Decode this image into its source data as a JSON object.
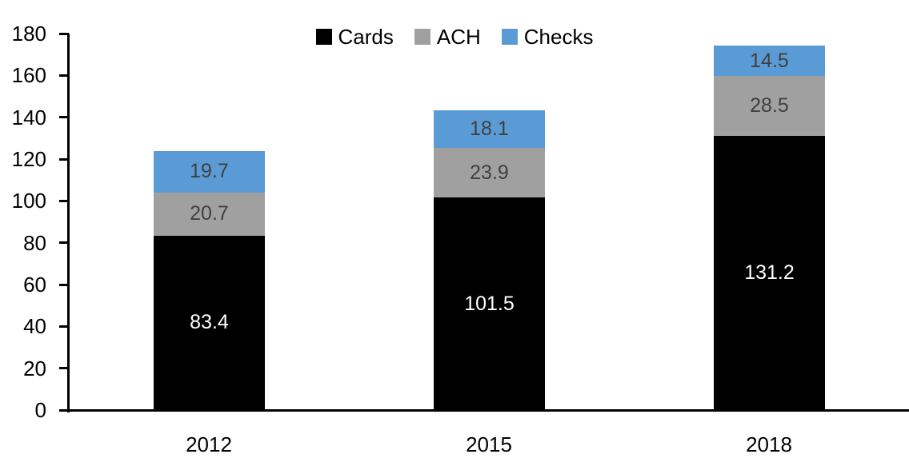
{
  "chart_data": {
    "type": "bar",
    "variant": "stacked",
    "title": "",
    "xlabel": "",
    "ylabel": "",
    "categories": [
      "2012",
      "2015",
      "2018"
    ],
    "series": [
      {
        "name": "Cards",
        "color": "#000000",
        "label_color": "#ffffff",
        "values": [
          83.4,
          101.5,
          131.2
        ]
      },
      {
        "name": "ACH",
        "color": "#A0A0A0",
        "label_color": "#404040",
        "values": [
          20.7,
          23.9,
          28.5
        ]
      },
      {
        "name": "Checks",
        "color": "#5B9BD5",
        "label_color": "#404040",
        "values": [
          19.7,
          18.1,
          14.5
        ]
      }
    ],
    "totals": [
      123.8,
      143.5,
      174.2
    ],
    "y_axis": {
      "min": 0,
      "max": 180,
      "step": 20,
      "ticks": [
        0,
        20,
        40,
        60,
        80,
        100,
        120,
        140,
        160,
        180
      ]
    },
    "legend": {
      "position": "top-center",
      "entries": [
        "Cards",
        "ACH",
        "Checks"
      ]
    },
    "grid": false,
    "axis_color": "#000000",
    "background": "#ffffff"
  }
}
